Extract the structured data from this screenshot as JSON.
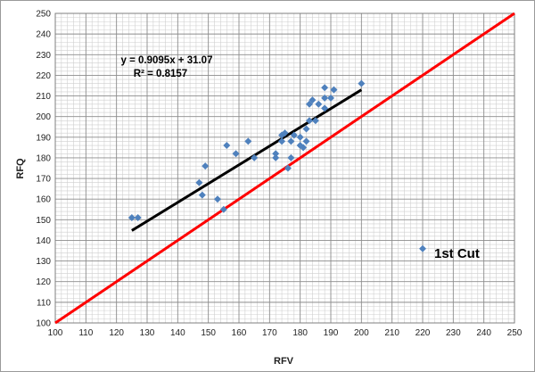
{
  "chart_data": {
    "type": "scatter",
    "title": "",
    "xlabel": "RFV",
    "ylabel": "RFQ",
    "xlim": [
      100,
      250
    ],
    "ylim": [
      100,
      250
    ],
    "x_ticks": [
      100,
      110,
      120,
      130,
      140,
      150,
      160,
      170,
      180,
      190,
      200,
      210,
      220,
      230,
      240,
      250
    ],
    "y_ticks": [
      100,
      110,
      120,
      130,
      140,
      150,
      160,
      170,
      180,
      190,
      200,
      210,
      220,
      230,
      240,
      250
    ],
    "minor_grid_step": 2,
    "grid": true,
    "legend": {
      "position": "right",
      "label": "1st Cut"
    },
    "series": [
      {
        "name": "1st Cut",
        "color": "#4f81bd",
        "marker": "diamond",
        "points": [
          [
            125,
            151
          ],
          [
            127,
            151
          ],
          [
            147,
            168
          ],
          [
            148,
            162
          ],
          [
            149,
            176
          ],
          [
            153,
            160
          ],
          [
            155,
            155
          ],
          [
            156,
            186
          ],
          [
            159,
            182
          ],
          [
            163,
            188
          ],
          [
            165,
            180
          ],
          [
            172,
            182
          ],
          [
            172,
            180
          ],
          [
            174,
            188
          ],
          [
            174,
            191
          ],
          [
            175,
            192
          ],
          [
            176,
            175
          ],
          [
            177,
            188
          ],
          [
            177,
            180
          ],
          [
            178,
            191
          ],
          [
            180,
            186
          ],
          [
            180,
            190
          ],
          [
            181,
            185
          ],
          [
            182,
            194
          ],
          [
            182,
            188
          ],
          [
            183,
            198
          ],
          [
            183,
            206
          ],
          [
            184,
            208
          ],
          [
            185,
            198
          ],
          [
            186,
            206
          ],
          [
            188,
            204
          ],
          [
            188,
            209
          ],
          [
            188,
            214
          ],
          [
            190,
            209
          ],
          [
            191,
            213
          ],
          [
            200,
            216
          ]
        ]
      }
    ],
    "trendline": {
      "color": "#000000",
      "slope": 0.9095,
      "intercept": 31.07,
      "x_range": [
        125,
        200
      ],
      "equation_label": "y = 0.9095x + 31.07",
      "r2_label": "R² = 0.8157"
    },
    "reference_line": {
      "color": "#ff0000",
      "from": [
        100,
        100
      ],
      "to": [
        250,
        250
      ]
    }
  }
}
